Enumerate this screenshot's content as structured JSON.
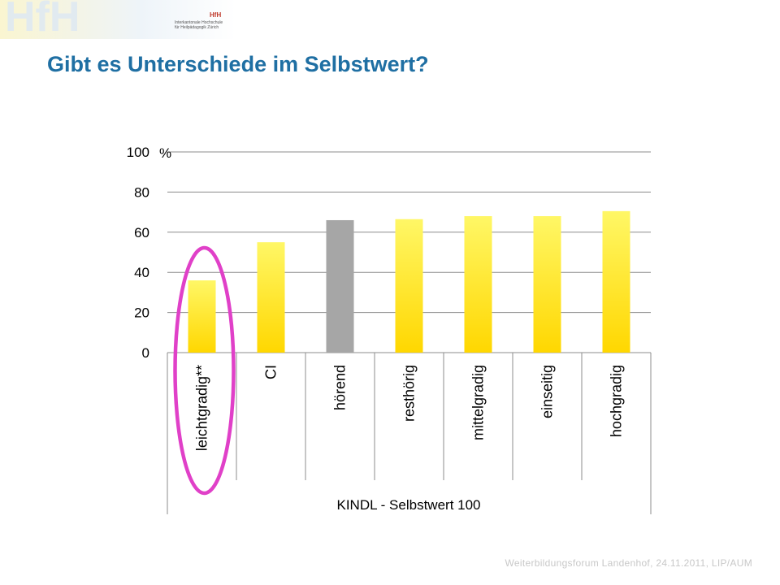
{
  "slide": {
    "title": "Gibt es Unterschiede im Selbstwert?",
    "footer": "Weiterbildungsforum Landenhof, 24.11.2011, LIP/AUM"
  },
  "logo": {
    "letters": "HfH",
    "badge": "HfH",
    "line1": "Interkantonale Hochschule",
    "line2": "für Heilpädagogik Zürich"
  },
  "colors": {
    "title": "#1f6fa3",
    "bar_top": "#fff766",
    "bar_bottom": "#ffd700",
    "bar_highlight": "#a6a6a6",
    "ellipse": "#e040c8"
  },
  "chart_data": {
    "type": "bar",
    "ylabel": "%",
    "ylim": [
      0,
      100
    ],
    "yticks": [
      "0",
      "20",
      "40",
      "60",
      "80",
      "100"
    ],
    "categories": [
      "leichtgradig**",
      "CI",
      "hörend",
      "resthörig",
      "mittelgradig",
      "einseitig",
      "hochgradig"
    ],
    "values": [
      36,
      55,
      66,
      66.5,
      68,
      68,
      70.5
    ],
    "highlight_index": 2,
    "circled_index": 0,
    "group_label": "KINDL - Selbstwert 100",
    "grid": true
  }
}
